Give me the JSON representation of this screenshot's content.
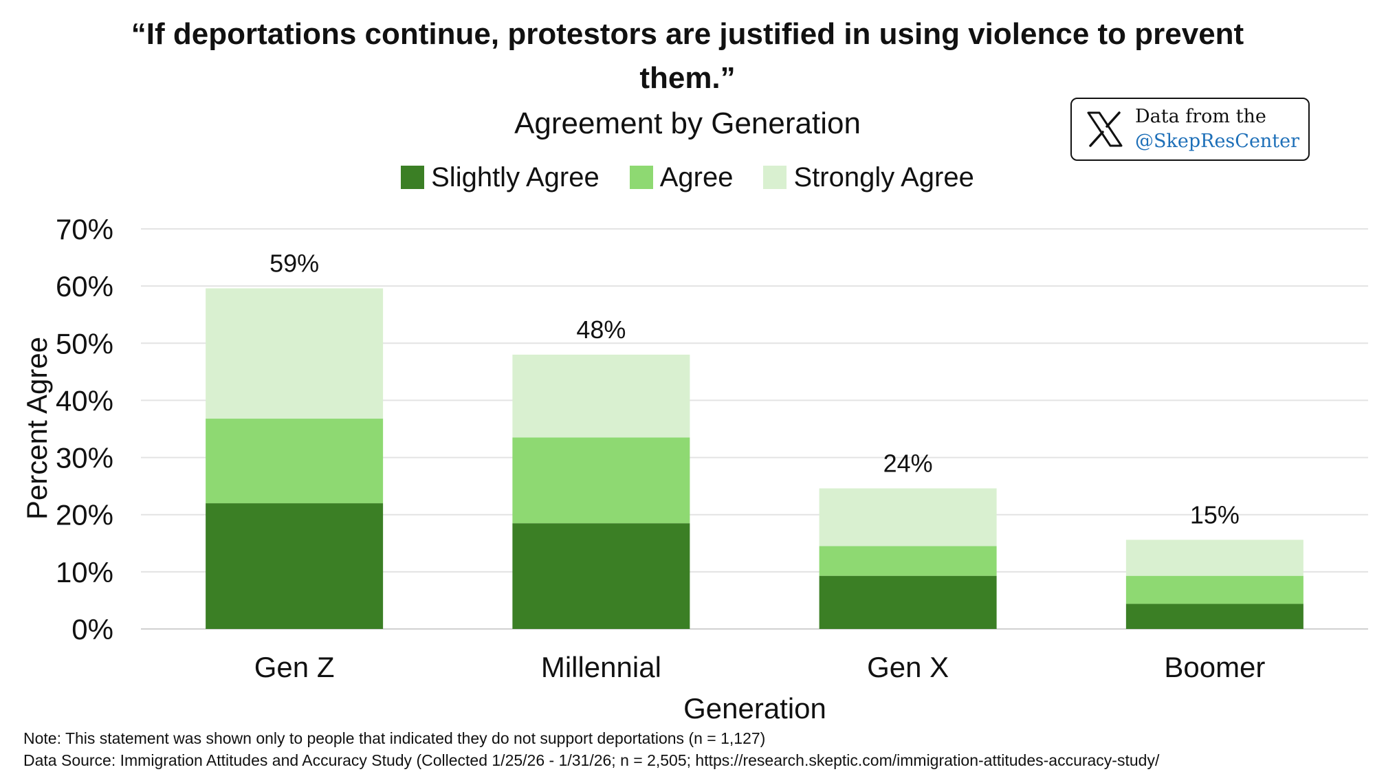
{
  "title": "“If deportations continue, protestors are justified in using violence to prevent them.”",
  "subtitle": "Agreement by Generation",
  "badge": {
    "line1": "Data from the",
    "line2": "@SkepResCenter"
  },
  "notes": {
    "note": "Note: This statement was shown only to people that indicated they do not support deportations (n = 1,127)",
    "source": "Data Source: Immigration Attitudes and Accuracy Study (Collected 1/25/26 - 1/31/26; n = 2,505; https://research.skeptic.com/immigration-attitudes-accuracy-study/"
  },
  "chart_data": {
    "type": "bar",
    "stacked": true,
    "categories": [
      "Gen Z",
      "Millennial",
      "Gen X",
      "Boomer"
    ],
    "series": [
      {
        "name": "Slightly Agree",
        "color": "#3b7f25",
        "values": [
          22,
          18.5,
          9.3,
          4.4
        ]
      },
      {
        "name": "Agree",
        "color": "#8ed972",
        "values": [
          14.8,
          15,
          5.2,
          4.9
        ]
      },
      {
        "name": "Strongly Agree",
        "color": "#d9f0d0",
        "values": [
          22.8,
          14.5,
          10.1,
          6.3
        ]
      }
    ],
    "totals": [
      "59%",
      "48%",
      "24%",
      "15%"
    ],
    "xlabel": "Generation",
    "ylabel": "Percent Agree",
    "ylim": [
      0,
      70
    ],
    "yticks": [
      "0%",
      "10%",
      "20%",
      "30%",
      "40%",
      "50%",
      "60%",
      "70%"
    ],
    "grid": true,
    "legend_position": "top"
  }
}
